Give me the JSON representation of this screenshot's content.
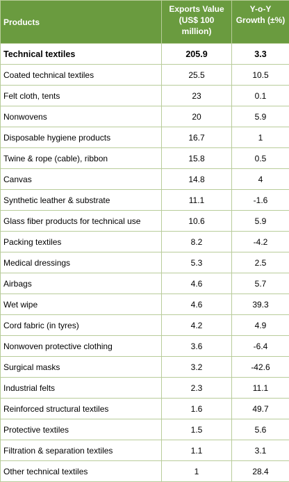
{
  "table": {
    "headers": {
      "products": "Products",
      "exports": "Exports Value (US$ 100 million)",
      "growth": "Y-o-Y Growth (±%)"
    },
    "rows": [
      {
        "product": "Technical textiles",
        "exports": "205.9",
        "growth": "3.3"
      },
      {
        "product": "Coated technical textiles",
        "exports": "25.5",
        "growth": "10.5"
      },
      {
        "product": "Felt cloth, tents",
        "exports": "23",
        "growth": "0.1"
      },
      {
        "product": "Nonwovens",
        "exports": "20",
        "growth": "5.9"
      },
      {
        "product": "Disposable hygiene products",
        "exports": "16.7",
        "growth": "1"
      },
      {
        "product": "Twine & rope (cable), ribbon",
        "exports": "15.8",
        "growth": "0.5"
      },
      {
        "product": "Canvas",
        "exports": "14.8",
        "growth": "4"
      },
      {
        "product": "Synthetic leather & substrate",
        "exports": "11.1",
        "growth": "-1.6"
      },
      {
        "product": "Glass fiber products for technical use",
        "exports": "10.6",
        "growth": "5.9"
      },
      {
        "product": "Packing textiles",
        "exports": "8.2",
        "growth": "-4.2"
      },
      {
        "product": "Medical dressings",
        "exports": "5.3",
        "growth": "2.5"
      },
      {
        "product": "Airbags",
        "exports": "4.6",
        "growth": "5.7"
      },
      {
        "product": "Wet wipe",
        "exports": "4.6",
        "growth": "39.3"
      },
      {
        "product": "Cord fabric (in tyres)",
        "exports": "4.2",
        "growth": "4.9"
      },
      {
        "product": "Nonwoven protective clothing",
        "exports": "3.6",
        "growth": "-6.4"
      },
      {
        "product": "Surgical masks",
        "exports": "3.2",
        "growth": "-42.6"
      },
      {
        "product": "Industrial felts",
        "exports": "2.3",
        "growth": "11.1"
      },
      {
        "product": "Reinforced structural textiles",
        "exports": "1.6",
        "growth": "49.7"
      },
      {
        "product": "Protective textiles",
        "exports": "1.5",
        "growth": "5.6"
      },
      {
        "product": "Filtration & separation textiles",
        "exports": "1.1",
        "growth": "3.1"
      },
      {
        "product": "Other technical textiles",
        "exports": "1",
        "growth": "28.4"
      }
    ]
  },
  "colors": {
    "header_bg": "#6a9b3f",
    "header_text": "#ffffff",
    "border": "#b8cc9a"
  }
}
